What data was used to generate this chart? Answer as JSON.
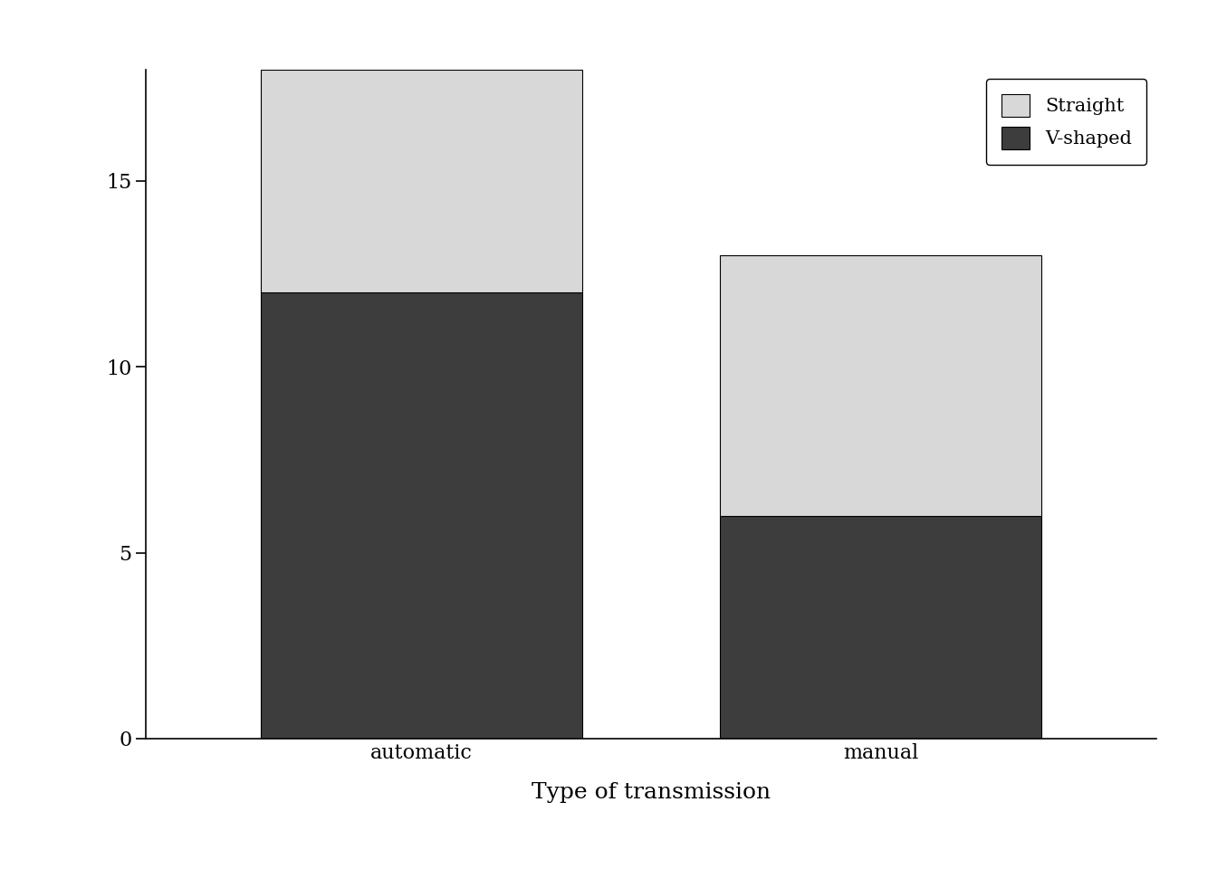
{
  "categories": [
    "automatic",
    "manual"
  ],
  "vshaped_values": [
    12,
    6
  ],
  "straight_values": [
    6,
    7
  ],
  "vshaped_color": "#3d3d3d",
  "straight_color": "#d8d8d8",
  "xlabel": "Type of transmission",
  "ylabel": "",
  "ylim": [
    0,
    18
  ],
  "yticks": [
    0,
    5,
    10,
    15
  ],
  "legend_labels": [
    "Straight",
    "V-shaped"
  ],
  "background_color": "#ffffff",
  "bar_width": 0.7,
  "title": ""
}
